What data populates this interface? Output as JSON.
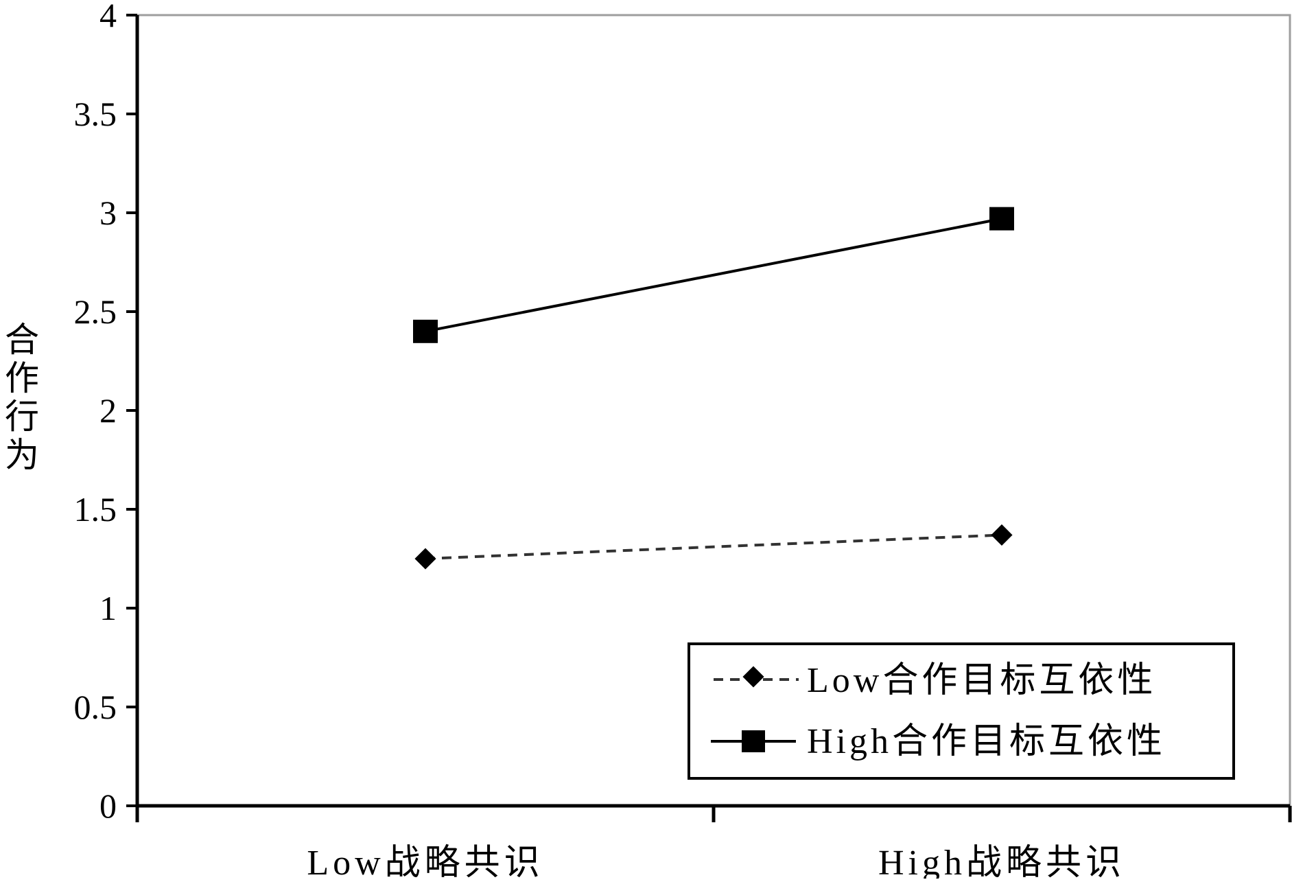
{
  "chart_data": {
    "type": "line",
    "title": "",
    "xlabel": "",
    "ylabel": "合作行为",
    "categories": [
      "Low战略共识",
      "High战略共识"
    ],
    "ylim": [
      0,
      4
    ],
    "yticks": [
      "0",
      "0.5",
      "1",
      "1.5",
      "2",
      "2.5",
      "3",
      "3.5",
      "4"
    ],
    "grid": false,
    "legend_position": "bottom-right",
    "series": [
      {
        "name": "Low合作目标互依性",
        "values": [
          1.25,
          1.37
        ],
        "marker": "diamond",
        "line_style": "dashed",
        "color": "#333333"
      },
      {
        "name": "High合作目标互依性",
        "values": [
          2.4,
          2.97
        ],
        "marker": "square",
        "line_style": "solid",
        "color": "#000000"
      }
    ]
  }
}
